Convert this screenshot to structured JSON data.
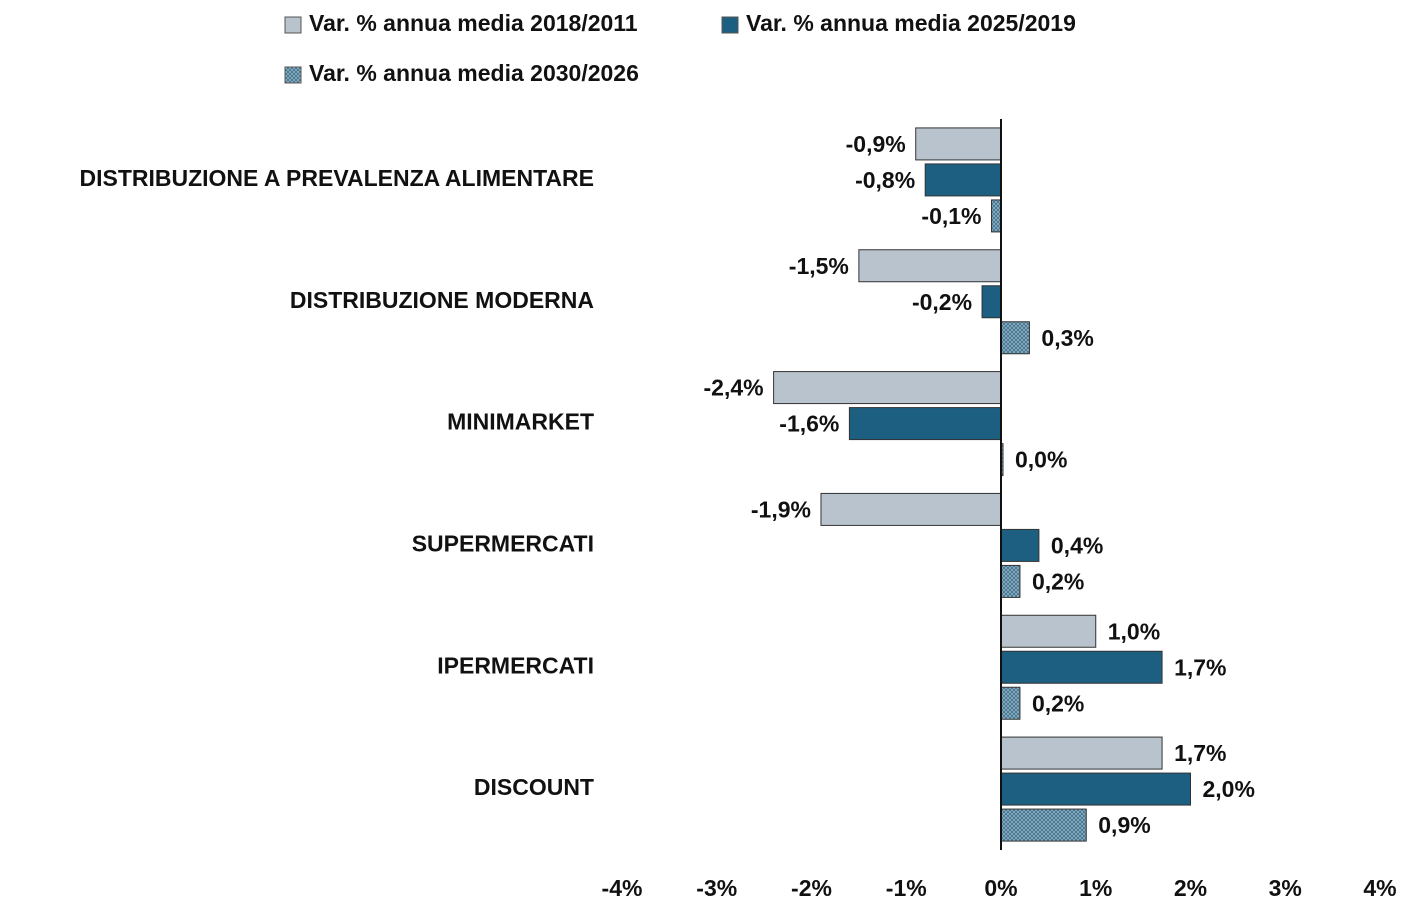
{
  "chart_data": {
    "type": "hbar",
    "categories": [
      "DISTRIBUZIONE A PREVALENZA ALIMENTARE",
      "DISTRIBUZIONE MODERNA",
      "MINIMARKET",
      "SUPERMERCATI",
      "IPERMERCATI",
      "DISCOUNT"
    ],
    "series": [
      {
        "name": "Var. % annua media 2018/2011",
        "color": "#b9c3cd",
        "values": [
          -0.9,
          -1.5,
          -2.4,
          -1.9,
          1.0,
          1.7
        ],
        "value_labels": [
          "-0,9%",
          "-1,5%",
          "-2,4%",
          "-1,9%",
          "1,0%",
          "1,7%"
        ]
      },
      {
        "name": "Var. % annua media 2025/2019",
        "color": "#1d5f80",
        "values": [
          -0.8,
          -0.2,
          -1.6,
          0.4,
          1.7,
          2.0
        ],
        "value_labels": [
          "-0,8%",
          "-0,2%",
          "-1,6%",
          "0,4%",
          "1,7%",
          "2,0%"
        ]
      },
      {
        "name": "Var. % annua media 2030/2026",
        "color": "#8fb2c6",
        "hatch": true,
        "values": [
          -0.1,
          0.3,
          0.0,
          0.2,
          0.2,
          0.9
        ],
        "value_labels": [
          "-0,1%",
          "0,3%",
          "0,0%",
          "0,2%",
          "0,2%",
          "0,9%"
        ]
      }
    ],
    "xlim": [
      -4,
      4
    ],
    "xticks": [
      {
        "value": -4,
        "label": "-4%"
      },
      {
        "value": -3,
        "label": "-3%"
      },
      {
        "value": -2,
        "label": "-2%"
      },
      {
        "value": -1,
        "label": "-1%"
      },
      {
        "value": 0,
        "label": "0%"
      },
      {
        "value": 1,
        "label": "1%"
      },
      {
        "value": 2,
        "label": "2%"
      },
      {
        "value": 3,
        "label": "3%"
      },
      {
        "value": 4,
        "label": "4%"
      }
    ],
    "legend": "top"
  }
}
